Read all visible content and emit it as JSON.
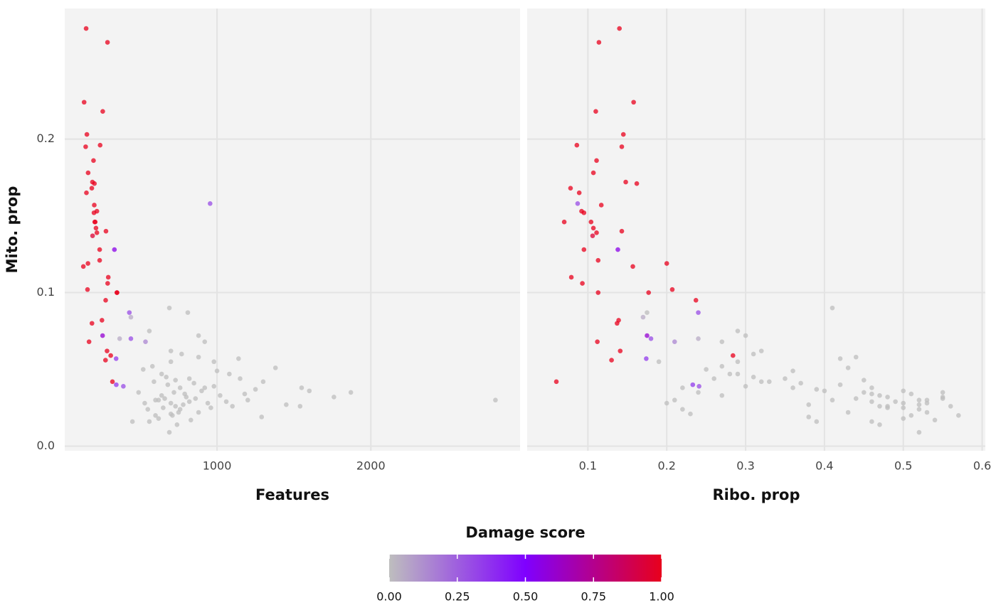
{
  "chart_data": [
    {
      "type": "scatter",
      "xlabel": "Features",
      "ylabel": "Mito. prop",
      "xlim": [
        10,
        2970
      ],
      "xticks": [
        1000,
        2000
      ],
      "ylim": [
        -0.003,
        0.285
      ],
      "yticks": [
        {
          "value": 0,
          "label": "0.0"
        },
        0.1,
        0.2
      ],
      "grid": true,
      "x": [
        149,
        288,
        136,
        257,
        154,
        240,
        146,
        197,
        162,
        190,
        203,
        151,
        186,
        202,
        200,
        219,
        205,
        208,
        213,
        278,
        219,
        191,
        237,
        333,
        237,
        131,
        161,
        293,
        289,
        158,
        349,
        350,
        276,
        252,
        187,
        256,
        168,
        285,
        309,
        275,
        320,
        955,
        430,
        440,
        440,
        344,
        345,
        391,
        535,
        367,
        600,
        650,
        700,
        720,
        750,
        680,
        800,
        780,
        640,
        710,
        760,
        820,
        860,
        900,
        550,
        590,
        620,
        670,
        730,
        790,
        850,
        940,
        980,
        1020,
        1080,
        1150,
        1200,
        1250,
        1300,
        1100,
        560,
        600,
        690,
        740,
        830,
        880,
        960,
        520,
        580,
        700,
        770,
        880,
        1000,
        1140,
        640,
        450,
        490,
        530,
        700,
        820,
        920,
        1060,
        1180,
        660,
        730,
        2810,
        1870,
        1760,
        1550,
        1600,
        1380,
        1290,
        690,
        810,
        880,
        920,
        560,
        1450,
        1540,
        980,
        760,
        620,
        700
      ],
      "y": [
        0.272,
        0.263,
        0.224,
        0.218,
        0.203,
        0.196,
        0.195,
        0.186,
        0.178,
        0.172,
        0.171,
        0.165,
        0.168,
        0.157,
        0.152,
        0.153,
        0.146,
        0.146,
        0.142,
        0.14,
        0.139,
        0.137,
        0.128,
        0.128,
        0.121,
        0.117,
        0.119,
        0.11,
        0.106,
        0.102,
        0.1,
        0.1,
        0.095,
        0.082,
        0.08,
        0.072,
        0.068,
        0.062,
        0.059,
        0.056,
        0.042,
        0.158,
        0.087,
        0.084,
        0.07,
        0.057,
        0.04,
        0.039,
        0.068,
        0.07,
        0.03,
        0.025,
        0.028,
        0.035,
        0.022,
        0.04,
        0.032,
        0.027,
        0.033,
        0.02,
        0.038,
        0.029,
        0.031,
        0.036,
        0.024,
        0.042,
        0.018,
        0.045,
        0.026,
        0.034,
        0.041,
        0.028,
        0.039,
        0.033,
        0.047,
        0.044,
        0.03,
        0.037,
        0.042,
        0.026,
        0.016,
        0.02,
        0.009,
        0.014,
        0.017,
        0.022,
        0.025,
        0.05,
        0.052,
        0.055,
        0.06,
        0.058,
        0.049,
        0.057,
        0.047,
        0.016,
        0.035,
        0.028,
        0.062,
        0.044,
        0.038,
        0.029,
        0.034,
        0.031,
        0.043,
        0.03,
        0.035,
        0.032,
        0.038,
        0.036,
        0.051,
        0.019,
        0.09,
        0.087,
        0.072,
        0.068,
        0.075,
        0.027,
        0.026,
        0.055,
        0.024,
        0.03,
        0.021
      ],
      "scores": [
        1,
        1,
        1,
        1,
        1,
        1,
        1,
        1,
        1,
        1,
        1,
        1,
        1,
        1,
        1,
        1,
        1,
        1,
        1,
        1,
        1,
        0.95,
        1,
        0.55,
        1,
        1,
        1,
        1,
        1,
        1,
        1,
        1,
        1,
        1,
        1,
        0.6,
        1,
        1,
        1,
        1,
        1,
        0.3,
        0.3,
        0.05,
        0.3,
        0.35,
        0.35,
        0.3,
        0.15,
        0.05,
        0,
        0,
        0,
        0,
        0,
        0,
        0,
        0,
        0,
        0,
        0,
        0,
        0,
        0,
        0,
        0,
        0,
        0,
        0,
        0,
        0,
        0,
        0,
        0,
        0,
        0,
        0,
        0,
        0,
        0,
        0,
        0,
        0,
        0,
        0,
        0,
        0,
        0,
        0,
        0,
        0,
        0,
        0,
        0,
        0,
        0,
        0,
        0,
        0,
        0,
        0,
        0,
        0,
        0,
        0,
        0,
        0,
        0,
        0,
        0,
        0,
        0,
        0,
        0,
        0,
        0,
        0,
        0,
        0,
        0,
        0,
        0,
        0
      ]
    },
    {
      "type": "scatter",
      "xlabel": "Ribo. prop",
      "xlim": [
        0.023,
        0.604
      ],
      "xticks": [
        0.1,
        0.2,
        0.3,
        0.4,
        0.5,
        0.6
      ],
      "ylim": [
        -0.003,
        0.285
      ],
      "grid": true,
      "x": [
        0.14,
        0.114,
        0.158,
        0.11,
        0.145,
        0.086,
        0.143,
        0.111,
        0.107,
        0.148,
        0.162,
        0.089,
        0.078,
        0.117,
        0.095,
        0.092,
        0.07,
        0.104,
        0.107,
        0.143,
        0.111,
        0.106,
        0.095,
        0.138,
        0.113,
        0.157,
        0.2,
        0.079,
        0.093,
        0.207,
        0.113,
        0.177,
        0.237,
        0.139,
        0.137,
        0.175,
        0.112,
        0.141,
        0.284,
        0.13,
        0.06,
        0.087,
        0.24,
        0.17,
        0.18,
        0.174,
        0.233,
        0.241,
        0.21,
        0.24,
        0.52,
        0.48,
        0.5,
        0.45,
        0.53,
        0.42,
        0.55,
        0.38,
        0.47,
        0.51,
        0.36,
        0.49,
        0.44,
        0.4,
        0.52,
        0.33,
        0.5,
        0.31,
        0.56,
        0.46,
        0.37,
        0.53,
        0.3,
        0.27,
        0.29,
        0.35,
        0.41,
        0.39,
        0.32,
        0.48,
        0.46,
        0.57,
        0.52,
        0.47,
        0.54,
        0.43,
        0.5,
        0.25,
        0.27,
        0.29,
        0.31,
        0.44,
        0.36,
        0.42,
        0.28,
        0.39,
        0.24,
        0.2,
        0.32,
        0.26,
        0.22,
        0.46,
        0.51,
        0.55,
        0.45,
        0.53,
        0.55,
        0.48,
        0.46,
        0.5,
        0.43,
        0.38,
        0.41,
        0.175,
        0.3,
        0.27,
        0.29,
        0.52,
        0.47,
        0.19,
        0.22,
        0.21,
        0.23
      ],
      "y": [
        0.272,
        0.263,
        0.224,
        0.218,
        0.203,
        0.196,
        0.195,
        0.186,
        0.178,
        0.172,
        0.171,
        0.165,
        0.168,
        0.157,
        0.152,
        0.153,
        0.146,
        0.146,
        0.142,
        0.14,
        0.139,
        0.137,
        0.128,
        0.128,
        0.121,
        0.117,
        0.119,
        0.11,
        0.106,
        0.102,
        0.1,
        0.1,
        0.095,
        0.082,
        0.08,
        0.072,
        0.068,
        0.062,
        0.059,
        0.056,
        0.042,
        0.158,
        0.087,
        0.084,
        0.07,
        0.057,
        0.04,
        0.039,
        0.068,
        0.07,
        0.03,
        0.025,
        0.028,
        0.035,
        0.022,
        0.04,
        0.032,
        0.027,
        0.033,
        0.02,
        0.038,
        0.029,
        0.031,
        0.036,
        0.024,
        0.042,
        0.018,
        0.045,
        0.026,
        0.034,
        0.041,
        0.028,
        0.039,
        0.033,
        0.047,
        0.044,
        0.03,
        0.037,
        0.042,
        0.026,
        0.016,
        0.02,
        0.009,
        0.014,
        0.017,
        0.022,
        0.025,
        0.05,
        0.052,
        0.055,
        0.06,
        0.058,
        0.049,
        0.057,
        0.047,
        0.016,
        0.035,
        0.028,
        0.062,
        0.044,
        0.038,
        0.029,
        0.034,
        0.031,
        0.043,
        0.03,
        0.035,
        0.032,
        0.038,
        0.036,
        0.051,
        0.019,
        0.09,
        0.087,
        0.072,
        0.068,
        0.075,
        0.027,
        0.026,
        0.055,
        0.024,
        0.03,
        0.021
      ],
      "scores": [
        1,
        1,
        1,
        1,
        1,
        1,
        1,
        1,
        1,
        1,
        1,
        1,
        1,
        1,
        1,
        1,
        1,
        1,
        1,
        1,
        1,
        0.95,
        1,
        0.55,
        1,
        1,
        1,
        1,
        1,
        1,
        1,
        1,
        1,
        1,
        1,
        0.6,
        1,
        1,
        1,
        1,
        1,
        0.3,
        0.3,
        0.05,
        0.3,
        0.35,
        0.35,
        0.3,
        0.15,
        0.05,
        0,
        0,
        0,
        0,
        0,
        0,
        0,
        0,
        0,
        0,
        0,
        0,
        0,
        0,
        0,
        0,
        0,
        0,
        0,
        0,
        0,
        0,
        0,
        0,
        0,
        0,
        0,
        0,
        0,
        0,
        0,
        0,
        0,
        0,
        0,
        0,
        0,
        0,
        0,
        0,
        0,
        0,
        0,
        0,
        0,
        0,
        0,
        0,
        0,
        0,
        0,
        0,
        0,
        0,
        0,
        0,
        0,
        0,
        0,
        0,
        0,
        0,
        0,
        0,
        0,
        0,
        0,
        0,
        0,
        0,
        0,
        0,
        0
      ]
    }
  ],
  "legend": {
    "title": "Damage score",
    "colors": [
      "#bebebe",
      "#7f00ff",
      "#e8001c"
    ],
    "lim": [
      0,
      1
    ],
    "ticks": [
      {
        "value": 0,
        "label": "0.00"
      },
      {
        "value": 0.25,
        "label": "0.25"
      },
      {
        "value": 0.5,
        "label": "0.50"
      },
      {
        "value": 0.75,
        "label": "0.75"
      },
      {
        "value": 1,
        "label": "1.00"
      }
    ]
  }
}
